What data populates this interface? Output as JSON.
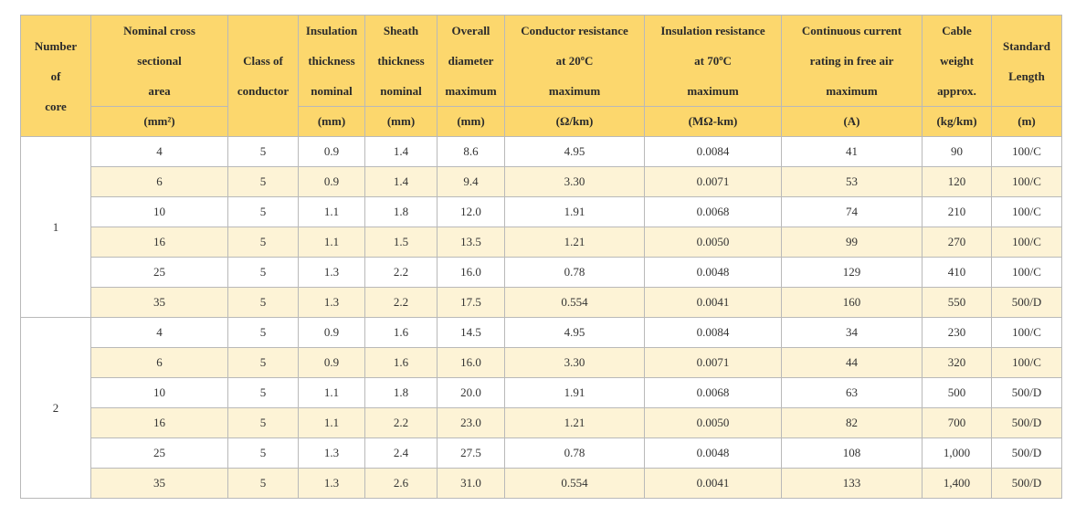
{
  "columns": [
    {
      "label": "Number\nof\ncore",
      "unit": ""
    },
    {
      "label": "Nominal cross\nsectional\narea",
      "unit": "(mm²)"
    },
    {
      "label": "Class of\nconductor",
      "unit": ""
    },
    {
      "label": "Insulation\nthickness\nnominal",
      "unit": "(mm)"
    },
    {
      "label": "Sheath\nthickness\nnominal",
      "unit": "(mm)"
    },
    {
      "label": "Overall\ndiameter\nmaximum",
      "unit": "(mm)"
    },
    {
      "label": "Conductor resistance\nat 20ºC\nmaximum",
      "unit": "(Ω/km)"
    },
    {
      "label": "Insulation resistance\nat 70ºC\nmaximum",
      "unit": "(MΩ-km)"
    },
    {
      "label": "Continuous current\nrating in free air\nmaximum",
      "unit": "(A)"
    },
    {
      "label": "Cable\nweight\napprox.",
      "unit": "(kg/km)"
    },
    {
      "label": "Standard\nLength",
      "unit": "(m)"
    }
  ],
  "groups": [
    {
      "core": "1",
      "rows": [
        [
          "4",
          "5",
          "0.9",
          "1.4",
          "8.6",
          "4.95",
          "0.0084",
          "41",
          "90",
          "100/C"
        ],
        [
          "6",
          "5",
          "0.9",
          "1.4",
          "9.4",
          "3.30",
          "0.0071",
          "53",
          "120",
          "100/C"
        ],
        [
          "10",
          "5",
          "1.1",
          "1.8",
          "12.0",
          "1.91",
          "0.0068",
          "74",
          "210",
          "100/C"
        ],
        [
          "16",
          "5",
          "1.1",
          "1.5",
          "13.5",
          "1.21",
          "0.0050",
          "99",
          "270",
          "100/C"
        ],
        [
          "25",
          "5",
          "1.3",
          "2.2",
          "16.0",
          "0.78",
          "0.0048",
          "129",
          "410",
          "100/C"
        ],
        [
          "35",
          "5",
          "1.3",
          "2.2",
          "17.5",
          "0.554",
          "0.0041",
          "160",
          "550",
          "500/D"
        ]
      ]
    },
    {
      "core": "2",
      "rows": [
        [
          "4",
          "5",
          "0.9",
          "1.6",
          "14.5",
          "4.95",
          "0.0084",
          "34",
          "230",
          "100/C"
        ],
        [
          "6",
          "5",
          "0.9",
          "1.6",
          "16.0",
          "3.30",
          "0.0071",
          "44",
          "320",
          "100/C"
        ],
        [
          "10",
          "5",
          "1.1",
          "1.8",
          "20.0",
          "1.91",
          "0.0068",
          "63",
          "500",
          "500/D"
        ],
        [
          "16",
          "5",
          "1.1",
          "2.2",
          "23.0",
          "1.21",
          "0.0050",
          "82",
          "700",
          "500/D"
        ],
        [
          "25",
          "5",
          "1.3",
          "2.4",
          "27.5",
          "0.78",
          "0.0048",
          "108",
          "1,000",
          "500/D"
        ],
        [
          "35",
          "5",
          "1.3",
          "2.6",
          "31.0",
          "0.554",
          "0.0041",
          "133",
          "1,400",
          "500/D"
        ]
      ]
    }
  ],
  "colors": {
    "header_bg": "#fcd76d",
    "stripe_bg": "#fdf3d6",
    "border": "#b9b9b9"
  }
}
